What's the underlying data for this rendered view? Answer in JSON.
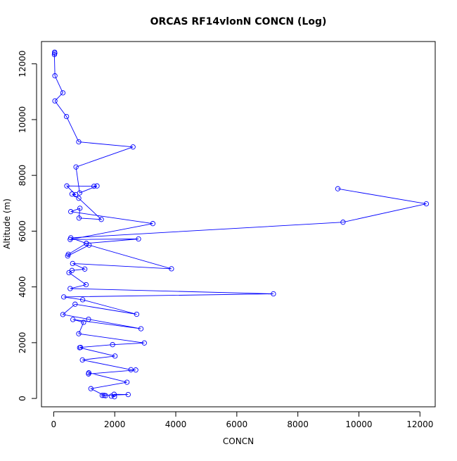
{
  "chart_data": {
    "type": "line",
    "title": "ORCAS RF14vlonN CONCN (Log)",
    "xlabel": "CONCN",
    "ylabel": "Altitude (m)",
    "xlim": [
      -400,
      12500
    ],
    "ylim": [
      -300,
      12800
    ],
    "xticks": [
      0,
      2000,
      4000,
      6000,
      8000,
      10000,
      12000
    ],
    "yticks": [
      0,
      2000,
      4000,
      6000,
      8000,
      10000,
      12000
    ],
    "grid": false,
    "markers": "open-circle",
    "color": "#0000ff",
    "series": [
      {
        "points": [
          [
            30,
            12420
          ],
          [
            35,
            12380
          ],
          [
            25,
            12330
          ],
          [
            40,
            11570
          ],
          [
            300,
            10960
          ],
          [
            40,
            10670
          ],
          [
            420,
            10110
          ],
          [
            820,
            9200
          ],
          [
            2600,
            9020
          ],
          [
            730,
            8300
          ],
          [
            850,
            7370
          ],
          [
            1420,
            7620
          ],
          [
            1320,
            7610
          ],
          [
            430,
            7620
          ],
          [
            720,
            7310
          ],
          [
            600,
            7330
          ],
          [
            820,
            7180
          ],
          [
            1560,
            6420
          ],
          [
            830,
            6470
          ],
          [
            860,
            6820
          ],
          [
            560,
            6700
          ],
          [
            3250,
            6270
          ],
          [
            540,
            5700
          ],
          [
            2780,
            5720
          ],
          [
            1070,
            5560
          ],
          [
            480,
            5170
          ],
          [
            460,
            5110
          ],
          [
            1160,
            5500
          ],
          [
            3860,
            4650
          ],
          [
            620,
            4840
          ],
          [
            1020,
            4640
          ],
          [
            600,
            4590
          ],
          [
            500,
            4510
          ],
          [
            1060,
            4080
          ],
          [
            540,
            3940
          ],
          [
            7200,
            3750
          ],
          [
            330,
            3640
          ],
          [
            950,
            3540
          ],
          [
            2720,
            3020
          ],
          [
            700,
            3380
          ],
          [
            300,
            3010
          ],
          [
            1140,
            2840
          ],
          [
            2860,
            2500
          ],
          [
            630,
            2830
          ],
          [
            980,
            2730
          ],
          [
            820,
            2320
          ],
          [
            2970,
            1990
          ],
          [
            1930,
            1930
          ],
          [
            880,
            1830
          ],
          [
            850,
            1820
          ],
          [
            2010,
            1520
          ],
          [
            940,
            1380
          ],
          [
            2530,
            1030
          ],
          [
            2690,
            1020
          ],
          [
            1140,
            880
          ],
          [
            1150,
            920
          ],
          [
            2400,
            580
          ],
          [
            1220,
            350
          ],
          [
            1650,
            110
          ],
          [
            1700,
            100
          ],
          [
            1590,
            110
          ],
          [
            2440,
            140
          ],
          [
            1980,
            150
          ],
          [
            1990,
            60
          ],
          [
            1890,
            80
          ]
        ]
      },
      {
        "points": [
          [
            9310,
            7520
          ],
          [
            12210,
            6980
          ],
          [
            9480,
            6320
          ],
          [
            560,
            5760
          ],
          [
            1070,
            5560
          ]
        ]
      }
    ]
  }
}
